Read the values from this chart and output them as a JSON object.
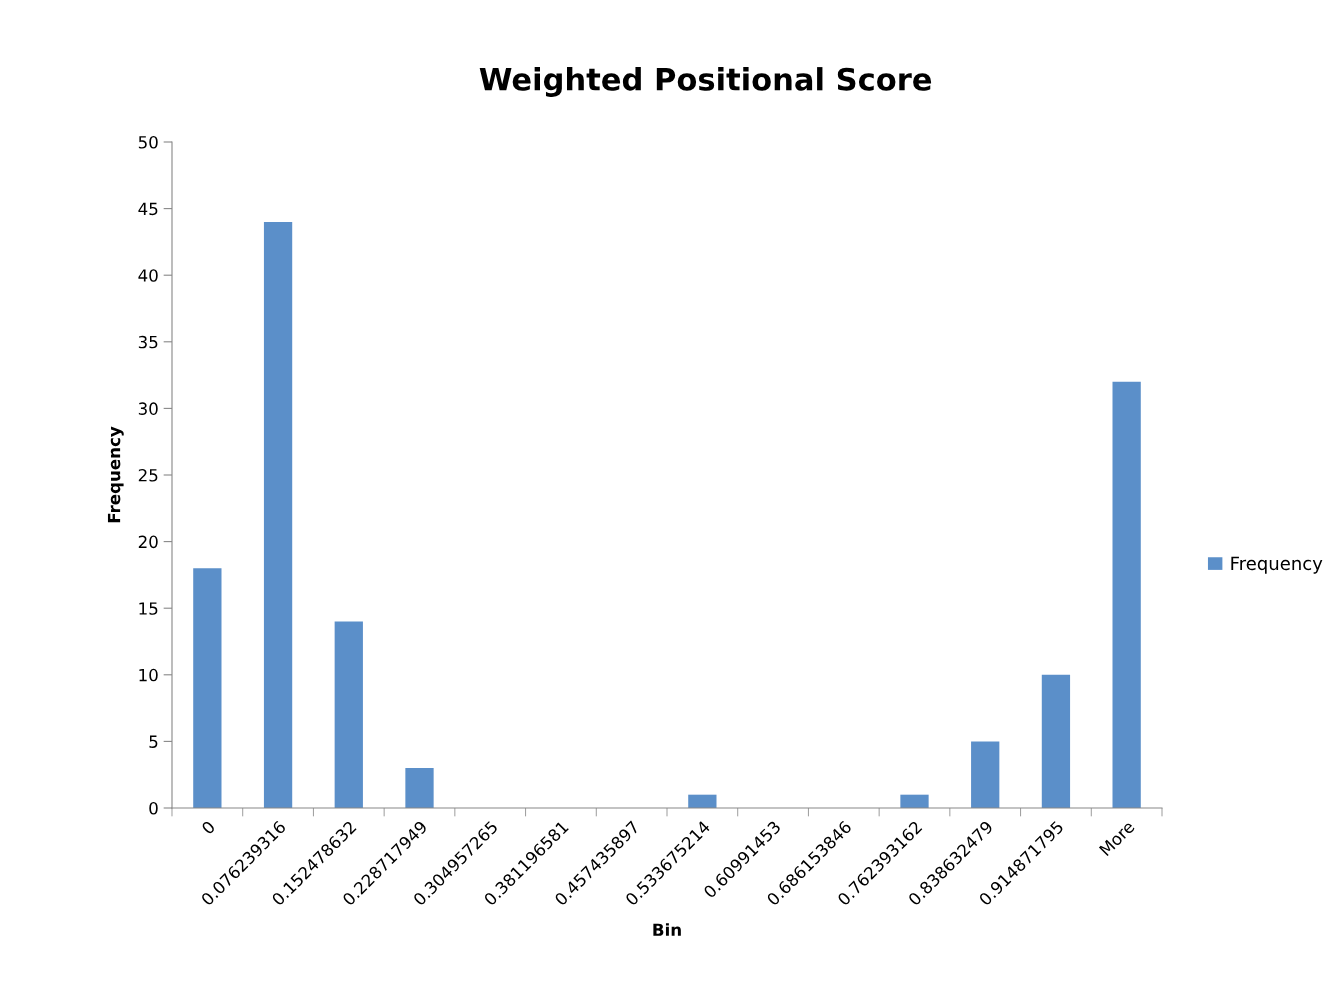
{
  "chart_data": {
    "type": "bar",
    "title": "Weighted Positional Score",
    "xlabel": "Bin",
    "ylabel": "Frequency",
    "categories": [
      "0",
      "0.076239316",
      "0.152478632",
      "0.228717949",
      "0.304957265",
      "0.381196581",
      "0.457435897",
      "0.533675214",
      "0.60991453",
      "0.686153846",
      "0.762393162",
      "0.838632479",
      "0.914871795",
      "More"
    ],
    "series": [
      {
        "name": "Frequency",
        "color": "#5b8fc9",
        "values": [
          18,
          44,
          14,
          3,
          0,
          0,
          0,
          1,
          0,
          0,
          1,
          5,
          10,
          32
        ]
      }
    ],
    "ylim": [
      0,
      50
    ],
    "yticks": [
      0,
      5,
      10,
      15,
      20,
      25,
      30,
      35,
      40,
      45,
      50
    ],
    "grid": false,
    "legend": "right"
  }
}
